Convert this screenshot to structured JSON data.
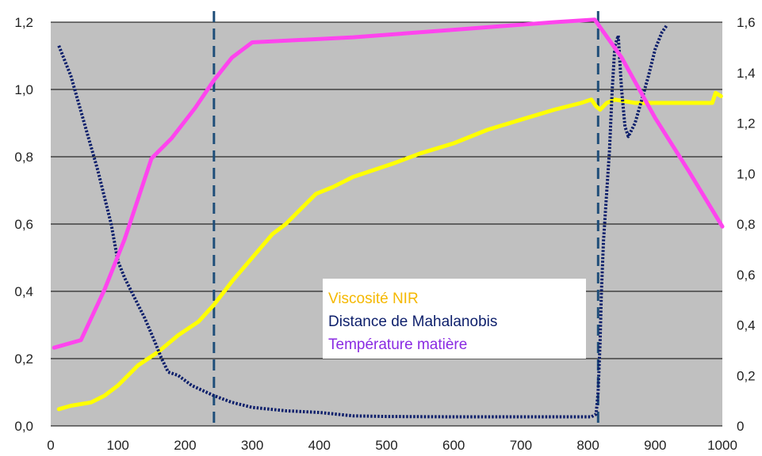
{
  "chart_data": {
    "type": "line",
    "title": "",
    "xlabel": "",
    "ylabel": "",
    "y2label": "",
    "xlim": [
      0,
      1000
    ],
    "ylim": [
      0,
      1.2
    ],
    "y2lim": [
      0,
      1.6
    ],
    "grid": true,
    "legend_placement": "center-bottom",
    "x_ticks": [
      "0",
      "100",
      "200",
      "300",
      "400",
      "500",
      "600",
      "700",
      "800",
      "900",
      "1000"
    ],
    "y_ticks": [
      "0,0",
      "0,2",
      "0,4",
      "0,6",
      "0,8",
      "1,0",
      "1,2"
    ],
    "y2_ticks": [
      "0",
      "0,2",
      "0,4",
      "0,6",
      "0,8",
      "1,0",
      "1,2",
      "1,4",
      "1,6"
    ],
    "vlines": [
      243,
      815
    ],
    "colors": {
      "plot_bg": "#c0c0c0",
      "gridline": "#000000",
      "vline": "#1f4e79",
      "viscosite": "#ffff00",
      "mahalanobis": "#0d1f6b",
      "temperature": "#ff44ee",
      "legend_viscosite": "#f5b800",
      "legend_mahalanobis": "#0d1f6b",
      "legend_temperature": "#8a2be2"
    },
    "series": [
      {
        "name": "Viscosité NIR",
        "axis": "left",
        "points": [
          [
            12,
            0.05
          ],
          [
            30,
            0.06
          ],
          [
            60,
            0.07
          ],
          [
            80,
            0.09
          ],
          [
            100,
            0.12
          ],
          [
            130,
            0.18
          ],
          [
            160,
            0.22
          ],
          [
            190,
            0.27
          ],
          [
            220,
            0.31
          ],
          [
            243,
            0.36
          ],
          [
            270,
            0.43
          ],
          [
            300,
            0.5
          ],
          [
            330,
            0.57
          ],
          [
            350,
            0.6
          ],
          [
            375,
            0.65
          ],
          [
            395,
            0.69
          ],
          [
            420,
            0.71
          ],
          [
            450,
            0.74
          ],
          [
            480,
            0.76
          ],
          [
            510,
            0.78
          ],
          [
            550,
            0.81
          ],
          [
            600,
            0.84
          ],
          [
            650,
            0.88
          ],
          [
            700,
            0.91
          ],
          [
            750,
            0.94
          ],
          [
            790,
            0.96
          ],
          [
            805,
            0.97
          ],
          [
            812,
            0.95
          ],
          [
            818,
            0.94
          ],
          [
            828,
            0.96
          ],
          [
            840,
            0.97
          ],
          [
            870,
            0.96
          ],
          [
            900,
            0.96
          ],
          [
            950,
            0.96
          ],
          [
            985,
            0.96
          ],
          [
            990,
            0.99
          ],
          [
            998,
            0.98
          ]
        ]
      },
      {
        "name": "Distance de Mahalanobis",
        "axis": "left",
        "points": [
          [
            12,
            1.13
          ],
          [
            30,
            1.04
          ],
          [
            50,
            0.9
          ],
          [
            70,
            0.76
          ],
          [
            90,
            0.6
          ],
          [
            100,
            0.49
          ],
          [
            110,
            0.44
          ],
          [
            125,
            0.38
          ],
          [
            140,
            0.32
          ],
          [
            155,
            0.25
          ],
          [
            165,
            0.2
          ],
          [
            175,
            0.16
          ],
          [
            190,
            0.15
          ],
          [
            210,
            0.12
          ],
          [
            243,
            0.09
          ],
          [
            270,
            0.07
          ],
          [
            300,
            0.055
          ],
          [
            350,
            0.045
          ],
          [
            400,
            0.04
          ],
          [
            450,
            0.03
          ],
          [
            500,
            0.028
          ],
          [
            600,
            0.027
          ],
          [
            700,
            0.027
          ],
          [
            805,
            0.027
          ],
          [
            812,
            0.035
          ],
          [
            815,
            0.1
          ],
          [
            818,
            0.25
          ],
          [
            820,
            0.4
          ],
          [
            823,
            0.55
          ],
          [
            828,
            0.7
          ],
          [
            832,
            0.82
          ],
          [
            836,
            1.0
          ],
          [
            840,
            1.13
          ],
          [
            845,
            1.16
          ],
          [
            850,
            1.0
          ],
          [
            855,
            0.89
          ],
          [
            860,
            0.86
          ],
          [
            870,
            0.9
          ],
          [
            880,
            0.97
          ],
          [
            890,
            1.04
          ],
          [
            900,
            1.12
          ],
          [
            910,
            1.17
          ],
          [
            917,
            1.19
          ]
        ]
      },
      {
        "name": "Température matière",
        "axis": "right",
        "points": [
          [
            5,
            0.31
          ],
          [
            45,
            0.34
          ],
          [
            80,
            0.54
          ],
          [
            110,
            0.74
          ],
          [
            150,
            1.06
          ],
          [
            180,
            1.14
          ],
          [
            215,
            1.26
          ],
          [
            243,
            1.37
          ],
          [
            270,
            1.46
          ],
          [
            300,
            1.52
          ],
          [
            450,
            1.54
          ],
          [
            600,
            1.57
          ],
          [
            750,
            1.6
          ],
          [
            810,
            1.61
          ],
          [
            850,
            1.46
          ],
          [
            900,
            1.22
          ],
          [
            950,
            1.01
          ],
          [
            1000,
            0.79
          ]
        ]
      }
    ]
  }
}
